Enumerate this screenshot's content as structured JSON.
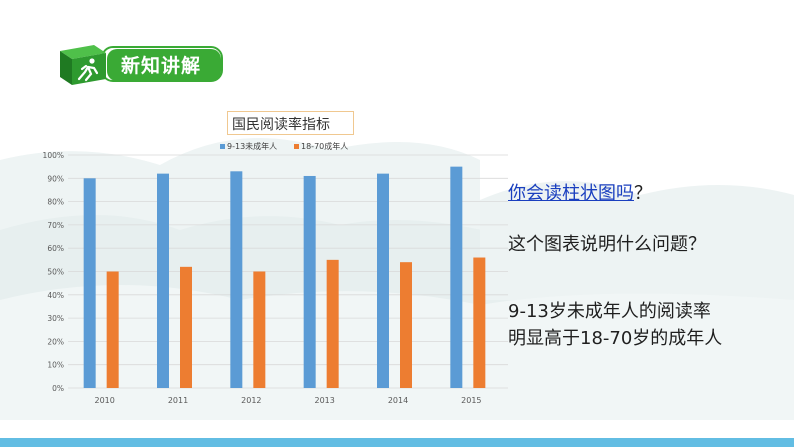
{
  "header": {
    "title": "新知讲解",
    "icon": "running-person-cube-icon"
  },
  "questions": {
    "q1_link": "你会读柱状图吗",
    "q1_mark": "？",
    "q2": "这个图表说明什么问题？"
  },
  "answer": {
    "line1": "9-13岁未成年人的阅读率",
    "line2": "明显高于18-70岁的成年人"
  },
  "colors": {
    "series1": "#5b9bd5",
    "series2": "#ed7d31",
    "accent": "#3aaa35",
    "bar": "#62bde3"
  },
  "chart_data": {
    "type": "bar",
    "title": "国民阅读率指标",
    "categories": [
      "2010",
      "2011",
      "2012",
      "2013",
      "2014",
      "2015"
    ],
    "series": [
      {
        "name": "9-13未成年人",
        "values": [
          90,
          92,
          93,
          91,
          92,
          95
        ]
      },
      {
        "name": "18-70成年人",
        "values": [
          50,
          52,
          50,
          55,
          54,
          56
        ]
      }
    ],
    "ylim": [
      0,
      100
    ],
    "yticks": [
      "0%",
      "10%",
      "20%",
      "30%",
      "40%",
      "50%",
      "60%",
      "70%",
      "80%",
      "90%",
      "100%"
    ],
    "grid": true,
    "legend": "top-left"
  }
}
